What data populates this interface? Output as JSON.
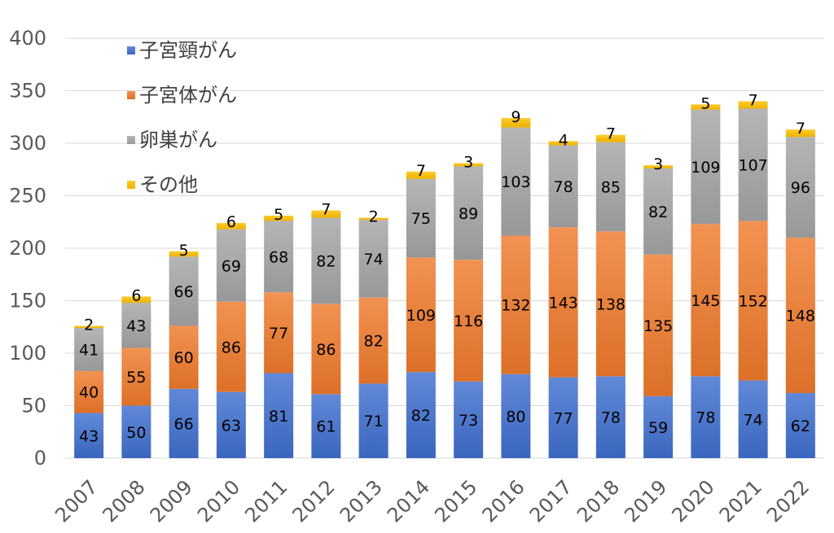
{
  "chart_data": {
    "type": "bar",
    "stacked": true,
    "categories": [
      "2007",
      "2008",
      "2009",
      "2010",
      "2011",
      "2012",
      "2013",
      "2014",
      "2015",
      "2016",
      "2017",
      "2018",
      "2019",
      "2020",
      "2021",
      "2022"
    ],
    "series": [
      {
        "name": "子宮頸がん",
        "color": "#3f6fcf",
        "values": [
          43,
          50,
          66,
          63,
          81,
          61,
          71,
          82,
          73,
          80,
          77,
          78,
          59,
          78,
          74,
          62
        ]
      },
      {
        "name": "子宮体がん",
        "color": "#ef7a2c",
        "values": [
          40,
          55,
          60,
          86,
          77,
          86,
          82,
          109,
          116,
          132,
          143,
          138,
          135,
          145,
          152,
          148
        ]
      },
      {
        "name": "卵巣がん",
        "color": "#a5a5a5",
        "values": [
          41,
          43,
          66,
          69,
          68,
          82,
          74,
          75,
          89,
          103,
          78,
          85,
          82,
          109,
          107,
          96
        ]
      },
      {
        "name": "その他",
        "color": "#ffc000",
        "values": [
          2,
          6,
          5,
          6,
          5,
          7,
          2,
          7,
          3,
          9,
          4,
          7,
          3,
          5,
          7,
          7
        ]
      }
    ],
    "title": "",
    "xlabel": "",
    "ylabel": "",
    "ylim": [
      0,
      400
    ],
    "yticks": [
      0,
      50,
      100,
      150,
      200,
      250,
      300,
      350,
      400
    ],
    "grid": true,
    "legend": "top-left"
  }
}
